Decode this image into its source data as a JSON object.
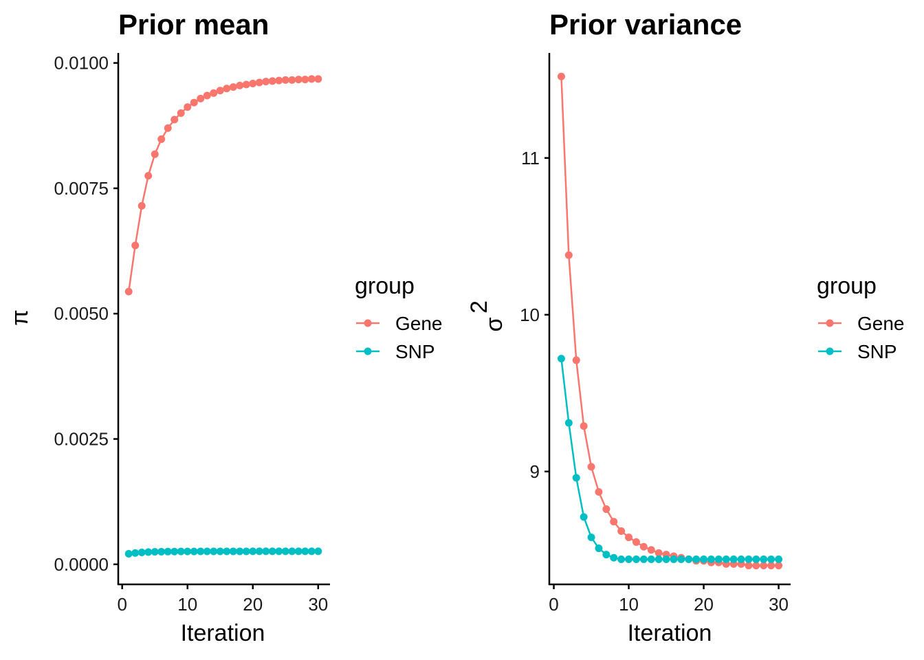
{
  "chart_data": [
    {
      "type": "line",
      "title": "Prior mean",
      "xlabel": "Iteration",
      "ylabel": "π",
      "xlim": [
        -0.6,
        31.6
      ],
      "ylim": [
        -0.0004,
        0.0102
      ],
      "xticks": [
        0,
        10,
        20,
        30
      ],
      "xtick_labels": [
        "0",
        "10",
        "20",
        "30"
      ],
      "yticks": [
        0,
        0.0025,
        0.005,
        0.0075,
        0.01
      ],
      "ytick_labels": [
        "0.0000",
        "0.0025",
        "0.0050",
        "0.0075",
        "0.0100"
      ],
      "legend": {
        "title": "group",
        "position": "right",
        "entries": [
          "Gene",
          "SNP"
        ]
      },
      "x": [
        1,
        2,
        3,
        4,
        5,
        6,
        7,
        8,
        9,
        10,
        11,
        12,
        13,
        14,
        15,
        16,
        17,
        18,
        19,
        20,
        21,
        22,
        23,
        24,
        25,
        26,
        27,
        28,
        29,
        30
      ],
      "series": [
        {
          "name": "Gene",
          "color": "#F8766D",
          "values": [
            0.00544,
            0.00636,
            0.00715,
            0.00775,
            0.00818,
            0.00848,
            0.0087,
            0.00887,
            0.009,
            0.00912,
            0.00921,
            0.00929,
            0.00935,
            0.0094,
            0.00945,
            0.00949,
            0.00952,
            0.00955,
            0.00957,
            0.00959,
            0.00961,
            0.00963,
            0.00964,
            0.00965,
            0.00966,
            0.00966,
            0.00967,
            0.00967,
            0.00968,
            0.00968
          ]
        },
        {
          "name": "SNP",
          "color": "#00BFC4",
          "values": [
            0.00021,
            0.000225,
            0.000238,
            0.000245,
            0.00025,
            0.000252,
            0.000254,
            0.000255,
            0.000256,
            0.000257,
            0.000257,
            0.000258,
            0.000258,
            0.000258,
            0.000259,
            0.000259,
            0.000259,
            0.000259,
            0.000259,
            0.00026,
            0.00026,
            0.00026,
            0.00026,
            0.00026,
            0.00026,
            0.00026,
            0.00026,
            0.00026,
            0.00026,
            0.00026
          ]
        }
      ]
    },
    {
      "type": "line",
      "title": "Prior variance",
      "xlabel": "Iteration",
      "ylabel": "σ",
      "ylabel_superscript": "2",
      "xlim": [
        -0.6,
        31.6
      ],
      "ylim": [
        8.28,
        11.67
      ],
      "xticks": [
        0,
        10,
        20,
        30
      ],
      "xtick_labels": [
        "0",
        "10",
        "20",
        "30"
      ],
      "yticks": [
        9,
        10,
        11
      ],
      "ytick_labels": [
        "9",
        "10",
        "11"
      ],
      "legend": {
        "title": "group",
        "position": "right",
        "entries": [
          "Gene",
          "SNP"
        ]
      },
      "x": [
        1,
        2,
        3,
        4,
        5,
        6,
        7,
        8,
        9,
        10,
        11,
        12,
        13,
        14,
        15,
        16,
        17,
        18,
        19,
        20,
        21,
        22,
        23,
        24,
        25,
        26,
        27,
        28,
        29,
        30
      ],
      "series": [
        {
          "name": "Gene",
          "color": "#F8766D",
          "values": [
            11.52,
            10.38,
            9.71,
            9.29,
            9.03,
            8.87,
            8.76,
            8.68,
            8.62,
            8.58,
            8.55,
            8.52,
            8.5,
            8.48,
            8.47,
            8.46,
            8.45,
            8.44,
            8.43,
            8.43,
            8.42,
            8.42,
            8.41,
            8.41,
            8.41,
            8.4,
            8.4,
            8.4,
            8.4,
            8.4
          ]
        },
        {
          "name": "SNP",
          "color": "#00BFC4",
          "values": [
            9.72,
            9.31,
            8.96,
            8.71,
            8.58,
            8.51,
            8.47,
            8.45,
            8.44,
            8.44,
            8.44,
            8.44,
            8.44,
            8.44,
            8.44,
            8.44,
            8.44,
            8.44,
            8.44,
            8.44,
            8.44,
            8.44,
            8.44,
            8.44,
            8.44,
            8.44,
            8.44,
            8.44,
            8.44,
            8.44
          ]
        }
      ]
    }
  ]
}
